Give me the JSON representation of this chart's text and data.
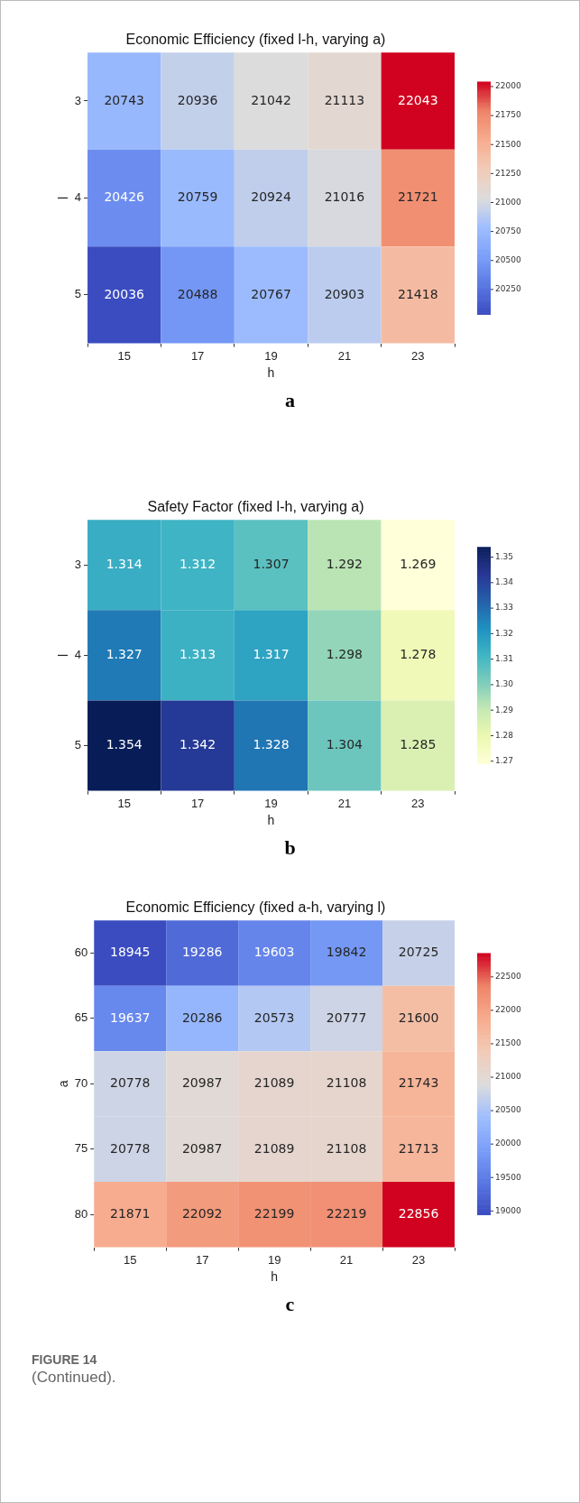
{
  "chart_data": [
    {
      "type": "heatmap",
      "title": "Economic Efficiency (fixed l-h, varying a)",
      "xlabel": "h",
      "ylabel": "l",
      "categories": [
        "15",
        "17",
        "19",
        "21",
        "23"
      ],
      "y_categories": [
        "3",
        "4",
        "5"
      ],
      "cells": [
        [
          20743,
          20936,
          21042,
          21113,
          22043
        ],
        [
          20426,
          20759,
          20924,
          21016,
          21721
        ],
        [
          20036,
          20488,
          20767,
          20903,
          21418
        ]
      ],
      "data_labels": true,
      "clim": [
        20036,
        22043
      ],
      "cticks": [
        20250,
        20500,
        20750,
        21000,
        21250,
        21500,
        21750,
        22000
      ],
      "colors": [
        "#3b4cc0",
        "#5977e3",
        "#7b9ff9",
        "#9ebeff",
        "#dddcdc",
        "#f2cbb7",
        "#f7ac8e",
        "#ee8468",
        "#d0021f"
      ],
      "annotations": [
        "a"
      ]
    },
    {
      "type": "heatmap",
      "title": "Safety Factor (fixed l-h, varying a)",
      "xlabel": "h",
      "ylabel": "l",
      "categories": [
        "15",
        "17",
        "19",
        "21",
        "23"
      ],
      "y_categories": [
        "3",
        "4",
        "5"
      ],
      "cells": [
        [
          1.314,
          1.312,
          1.307,
          1.292,
          1.269
        ],
        [
          1.327,
          1.313,
          1.317,
          1.298,
          1.278
        ],
        [
          1.354,
          1.342,
          1.328,
          1.304,
          1.285
        ]
      ],
      "data_labels": true,
      "clim": [
        1.269,
        1.354
      ],
      "cticks": [
        1.27,
        1.28,
        1.29,
        {
          "value": 1.3,
          "label": "1.30"
        },
        1.31,
        1.32,
        1.33,
        1.34,
        1.35
      ],
      "colors": [
        "#ffffd9",
        "#edf8b1",
        "#c7e9b4",
        "#7fcdbb",
        "#41b6c4",
        "#1d91c0",
        "#225ea8",
        "#253494",
        "#081d58"
      ],
      "annotations": [
        "b"
      ]
    },
    {
      "type": "heatmap",
      "title": "Economic Efficiency (fixed a-h, varying l)",
      "xlabel": "h",
      "ylabel": "a",
      "categories": [
        "15",
        "17",
        "19",
        "21",
        "23"
      ],
      "y_categories": [
        "60",
        "65",
        "70",
        "75",
        "80"
      ],
      "cells": [
        [
          18945,
          19286,
          19603,
          19842,
          20725
        ],
        [
          19637,
          20286,
          20573,
          20777,
          21600
        ],
        [
          20778,
          20987,
          21089,
          21108,
          21743
        ],
        [
          20778,
          20987,
          21089,
          21108,
          21713
        ],
        [
          21871,
          22092,
          22199,
          22219,
          22856
        ]
      ],
      "data_labels": true,
      "clim": [
        18945,
        22856
      ],
      "cticks": [
        19000,
        19500,
        20000,
        20500,
        21000,
        21500,
        22000,
        22500
      ],
      "colors": [
        "#3b4cc0",
        "#5977e3",
        "#7b9ff9",
        "#9ebeff",
        "#dddcdc",
        "#f2cbb7",
        "#f7ac8e",
        "#ee8468",
        "#d0021f"
      ],
      "annotations": [
        "c",
        "FIGURE 14",
        "(Continued)."
      ]
    }
  ]
}
